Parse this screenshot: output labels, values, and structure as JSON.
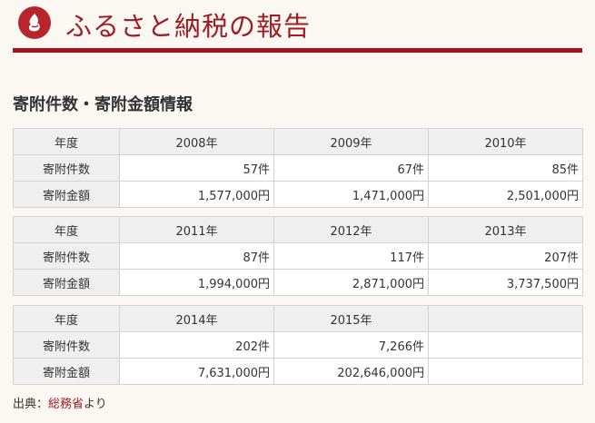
{
  "header": {
    "site_title": "ふるさと納税の報告",
    "brand_color": "#9e1c22"
  },
  "section": {
    "title": "寄附件数・寄附金額情報"
  },
  "tables": [
    {
      "year_header": "年度",
      "years": [
        "2008年",
        "2009年",
        "2010年"
      ],
      "count_label": "寄附件数",
      "counts": [
        "57件",
        "67件",
        "85件"
      ],
      "amount_label": "寄附金額",
      "amounts": [
        "1,577,000円",
        "1,471,000円",
        "2,501,000円"
      ]
    },
    {
      "year_header": "年度",
      "years": [
        "2011年",
        "2012年",
        "2013年"
      ],
      "count_label": "寄附件数",
      "counts": [
        "87件",
        "117件",
        "207件"
      ],
      "amount_label": "寄附金額",
      "amounts": [
        "1,994,000円",
        "2,871,000円",
        "3,737,500円"
      ]
    },
    {
      "year_header": "年度",
      "years": [
        "2014年",
        "2015年",
        ""
      ],
      "count_label": "寄附件数",
      "counts": [
        "202件",
        "7,266件",
        ""
      ],
      "amount_label": "寄附金額",
      "amounts": [
        "7,631,000円",
        "202,646,000円",
        ""
      ]
    }
  ],
  "source": {
    "prefix": "出典：",
    "link_text": "総務省",
    "suffix": "より"
  }
}
